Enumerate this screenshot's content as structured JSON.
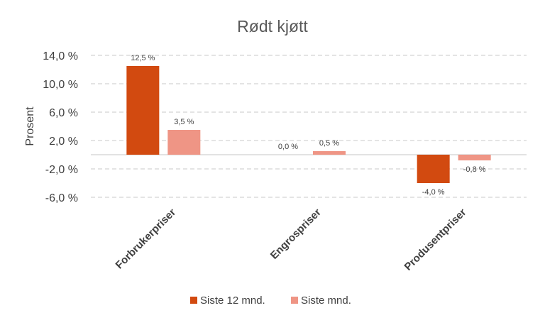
{
  "chart_data": {
    "type": "bar",
    "title": "Rødt kjøtt",
    "ylabel": "Prosent",
    "xlabel": "",
    "ylim": [
      -6.0,
      14.0
    ],
    "yticks": [
      14.0,
      10.0,
      6.0,
      2.0,
      -2.0,
      -6.0
    ],
    "ytick_labels": [
      "14,0 %",
      "10,0 %",
      "6,0 %",
      "2,0 %",
      "-2,0 %",
      "-6,0 %"
    ],
    "grid": "horizontal dashed",
    "legend_position": "bottom",
    "categories": [
      "Forbrukerpriser",
      "Engrospriser",
      "Produsentpriser"
    ],
    "series": [
      {
        "name": "Siste 12 mnd.",
        "color": "#d24a10",
        "values": [
          12.5,
          0.0,
          -4.0
        ],
        "labels": [
          "12,5 %",
          "0,0 %",
          "-4,0 %"
        ]
      },
      {
        "name": "Siste mnd.",
        "color": "#ef9585",
        "values": [
          3.5,
          0.5,
          -0.8
        ],
        "labels": [
          "3,5 %",
          "0,5 %",
          "-0,8 %"
        ]
      }
    ]
  }
}
